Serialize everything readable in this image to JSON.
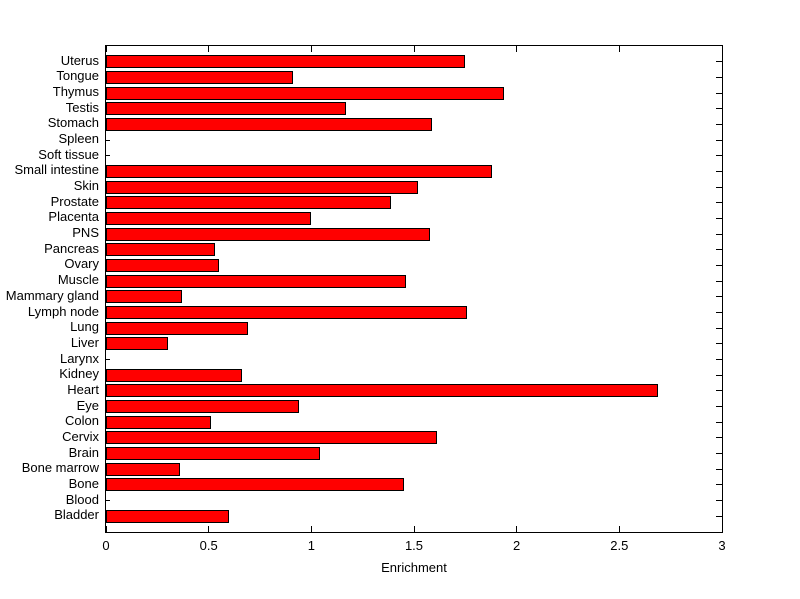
{
  "chart_data": {
    "type": "bar",
    "orientation": "horizontal",
    "title": "",
    "xlabel": "Enrichment",
    "ylabel": "",
    "xlim": [
      0,
      3
    ],
    "xticks": [
      0,
      0.5,
      1,
      1.5,
      2,
      2.5,
      3
    ],
    "xtick_labels": [
      "0",
      "0.5",
      "1",
      "1.5",
      "2",
      "2.5",
      "3"
    ],
    "grid": false,
    "legend_position": "none",
    "bar_color": "#ff0000",
    "bar_edge_color": "#000000",
    "axis_color": "#000000",
    "background_color": "#ffffff",
    "categories": [
      "Uterus",
      "Tongue",
      "Thymus",
      "Testis",
      "Stomach",
      "Spleen",
      "Soft tissue",
      "Small intestine",
      "Skin",
      "Prostate",
      "Placenta",
      "PNS",
      "Pancreas",
      "Ovary",
      "Muscle",
      "Mammary gland",
      "Lymph node",
      "Lung",
      "Liver",
      "Larynx",
      "Kidney",
      "Heart",
      "Eye",
      "Colon",
      "Cervix",
      "Brain",
      "Bone marrow",
      "Bone",
      "Blood",
      "Bladder"
    ],
    "values": [
      1.75,
      0.91,
      1.94,
      1.17,
      1.59,
      0,
      0,
      1.88,
      1.52,
      1.39,
      1.0,
      1.58,
      0.53,
      0.55,
      1.46,
      0.37,
      1.76,
      0.69,
      0.3,
      0,
      0.66,
      2.69,
      0.94,
      0.51,
      1.61,
      1.04,
      0.36,
      1.45,
      0,
      0.6
    ]
  }
}
